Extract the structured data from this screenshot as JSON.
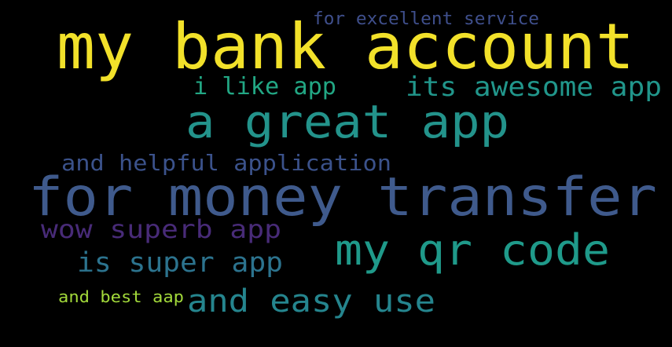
{
  "words": [
    {
      "text": "my bank account",
      "color": "#f2e12a"
    },
    {
      "text": "for excellent service",
      "color": "#3f4f8c"
    },
    {
      "text": "i like app",
      "color": "#22a784"
    },
    {
      "text": "its awesome app",
      "color": "#21968b"
    },
    {
      "text": "a great app",
      "color": "#23938b"
    },
    {
      "text": "and helpful application",
      "color": "#3b528b"
    },
    {
      "text": "for money transfer",
      "color": "#3f5a8c"
    },
    {
      "text": "wow superb app",
      "color": "#482b78"
    },
    {
      "text": "my qr code",
      "color": "#1f9a8a"
    },
    {
      "text": "is super app",
      "color": "#2c738e"
    },
    {
      "text": "and best aap",
      "color": "#a2d93a"
    },
    {
      "text": "and easy use",
      "color": "#25858e"
    }
  ]
}
